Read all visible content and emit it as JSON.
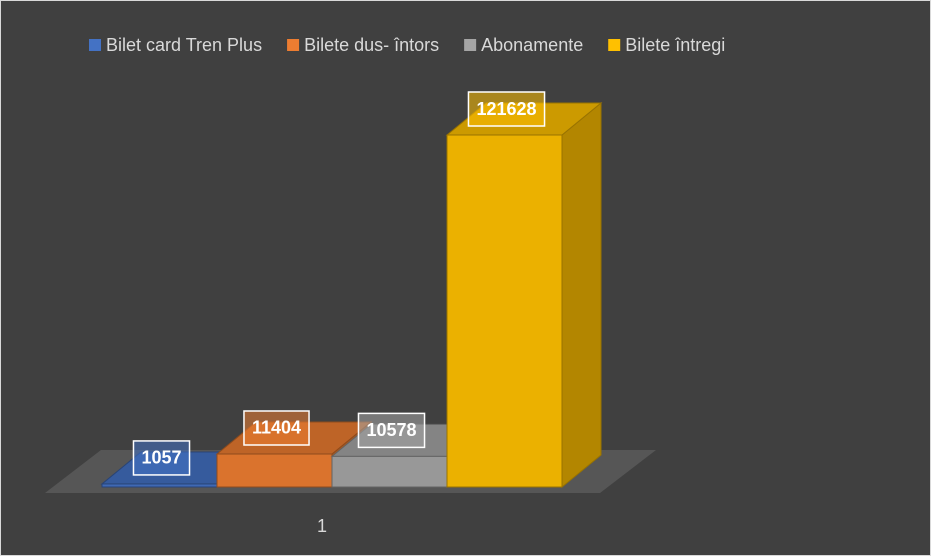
{
  "chart_data": {
    "type": "bar3d",
    "categories": [
      "1"
    ],
    "series": [
      {
        "name": "Bilet card Tren Plus",
        "color": "#4472c4",
        "values": [
          1057
        ]
      },
      {
        "name": "Bilete dus- întors",
        "color": "#ed7d31",
        "values": [
          11404
        ]
      },
      {
        "name": "Abonamente",
        "color": "#a5a5a5",
        "values": [
          10578
        ]
      },
      {
        "name": "Bilete întregi",
        "color": "#ffc000",
        "values": [
          121628
        ]
      }
    ],
    "legend": "top",
    "data_labels": true
  }
}
